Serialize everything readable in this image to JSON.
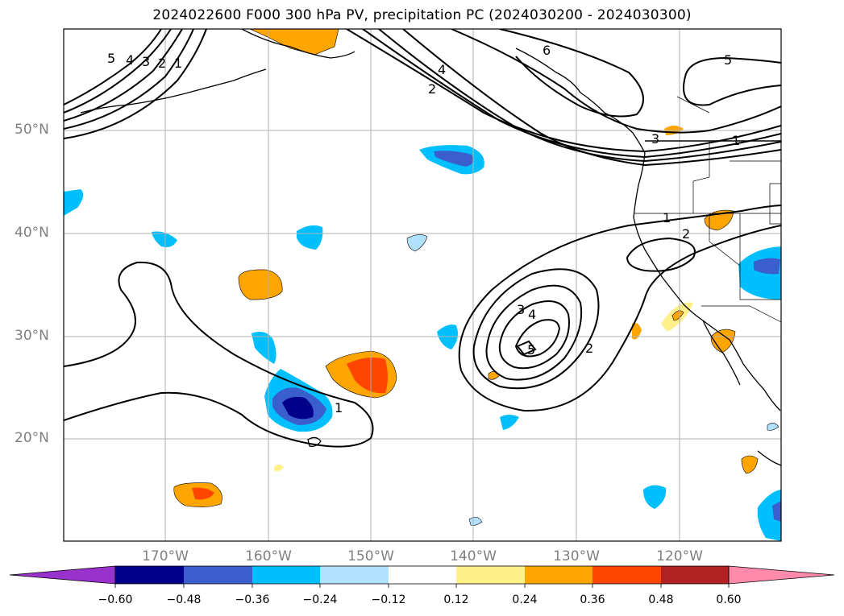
{
  "title": "2024022600 F000 300 hPa PV, precipitation PC (2024030200 - 2024030300)",
  "lat_labels": [
    "50°N",
    "40°N",
    "30°N",
    "20°N"
  ],
  "lon_labels": [
    "170°W",
    "160°W",
    "150°W",
    "140°W",
    "130°W",
    "120°W"
  ],
  "contour_labels": [
    "5",
    "4",
    "3",
    "2",
    "1",
    "6",
    "4",
    "2",
    "5",
    "3",
    "1",
    "1",
    "2",
    "3",
    "4",
    "5",
    "2",
    "1"
  ],
  "colorbar": {
    "ticks": [
      "−0.60",
      "−0.48",
      "−0.36",
      "−0.24",
      "−0.12",
      "0.12",
      "0.24",
      "0.36",
      "0.48",
      "0.60"
    ],
    "colors": [
      "#9932cc",
      "#00008b",
      "#3a5fcd",
      "#00bfff",
      "#b0e2ff",
      "#ffffff",
      "#fff08a",
      "#ffa500",
      "#ff4500",
      "#b22222",
      "#ff8aac"
    ]
  }
}
